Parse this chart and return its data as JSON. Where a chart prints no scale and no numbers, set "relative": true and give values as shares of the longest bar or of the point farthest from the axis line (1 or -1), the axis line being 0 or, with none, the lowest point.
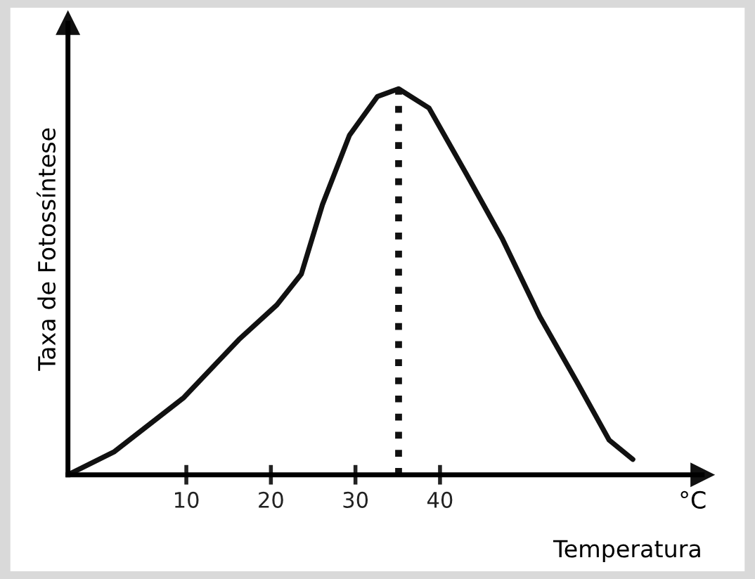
{
  "chart_data": {
    "type": "line",
    "relative": true,
    "xlabel": "Temperatura",
    "ylabel": "Taxa de Fotossíntese",
    "annotations": [
      "°C"
    ],
    "x": [
      -4,
      1.5,
      9.7,
      16.2,
      20.7,
      23.6,
      26.1,
      29.3,
      32.6,
      35.1,
      38.7,
      43.1,
      47.4,
      51.8,
      56.2,
      60.0,
      62.8
    ],
    "series": [
      {
        "color": "#111111",
        "values": [
          0,
          0.06,
          0.2,
          0.35,
          0.44,
          0.52,
          0.7,
          0.88,
          0.98,
          1.0,
          0.95,
          0.78,
          0.61,
          0.41,
          0.24,
          0.09,
          0.04
        ]
      }
    ],
    "xlim": [
      -4,
      71
    ],
    "xticks": [
      10,
      20,
      30,
      40
    ],
    "tick_labels": "x",
    "grid": false,
    "legend": false,
    "marker": "none",
    "line_style": "solid",
    "ref_lines": [
      {
        "axis": "x",
        "value": 35.1,
        "label": null,
        "color": "#111111",
        "line_style": "dotted"
      }
    ]
  }
}
